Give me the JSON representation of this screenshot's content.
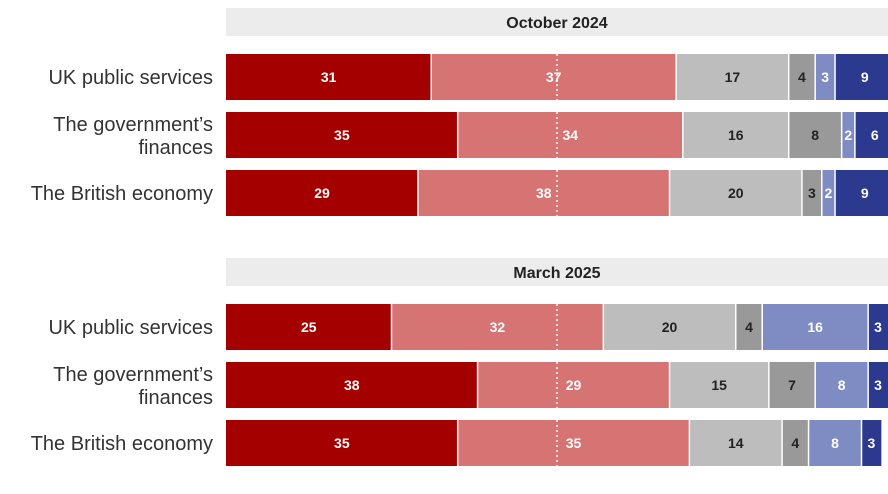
{
  "chart_data": {
    "type": "bar",
    "orientation": "horizontal",
    "stacked": true,
    "xlim": [
      0,
      100
    ],
    "legend": "none",
    "reference_line": 50,
    "segment_colors": [
      "#a50000",
      "#d67373",
      "#bdbdbd",
      "#999999",
      "#7f8cc4",
      "#2b3a8f"
    ],
    "segment_text_colors": [
      "#ffffff",
      "#ffffff",
      "#222222",
      "#222222",
      "#ffffff",
      "#ffffff"
    ],
    "panel_background": "#ececec",
    "panels": [
      {
        "title": "October 2024",
        "categories": [
          "UK public services",
          "The government's finances",
          "The British economy"
        ],
        "labels": [
          [
            "UK public services"
          ],
          [
            "The government’s",
            "finances"
          ],
          [
            "The British economy"
          ]
        ],
        "values": [
          [
            31,
            37,
            17,
            4,
            3,
            9
          ],
          [
            35,
            34,
            16,
            8,
            2,
            6
          ],
          [
            29,
            38,
            20,
            3,
            2,
            9
          ]
        ]
      },
      {
        "title": "March 2025",
        "categories": [
          "UK public services",
          "The government's finances",
          "The British economy"
        ],
        "labels": [
          [
            "UK public services"
          ],
          [
            "The government’s",
            "finances"
          ],
          [
            "The British economy"
          ]
        ],
        "values": [
          [
            25,
            32,
            20,
            4,
            16,
            3
          ],
          [
            38,
            29,
            15,
            7,
            8,
            3
          ],
          [
            35,
            35,
            14,
            4,
            8,
            3
          ]
        ]
      }
    ]
  }
}
